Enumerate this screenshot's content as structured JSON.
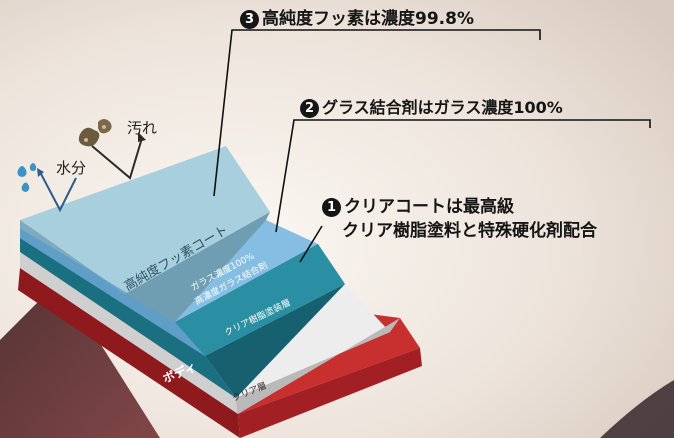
{
  "callouts": {
    "c3": {
      "num": "3",
      "text": "高純度フッ素は濃度99.8%"
    },
    "c2": {
      "num": "2",
      "text": "グラス結合剤はガラス濃度100%"
    },
    "c1": {
      "num": "1",
      "line1": "クリアコートは最高級",
      "line2": "クリア樹脂塗料と特殊硬化剤配合"
    }
  },
  "labels": {
    "water": "水分",
    "dirt": "汚れ"
  },
  "layers": {
    "top": "高純度フッ素コート",
    "glass_line1": "ガラス濃度100%",
    "glass_line2": "高濃度ガラス結合剤",
    "clear_resin": "クリア樹脂塗装層",
    "clear_layer": "クリア層",
    "body": "ボディ"
  },
  "colors": {
    "fluorine": "#9cc3d3",
    "glass": "#7fb5dc",
    "clear_resin": "#1e7f93",
    "clear_layer": "#e4e4e4",
    "body": "#b8262a"
  }
}
